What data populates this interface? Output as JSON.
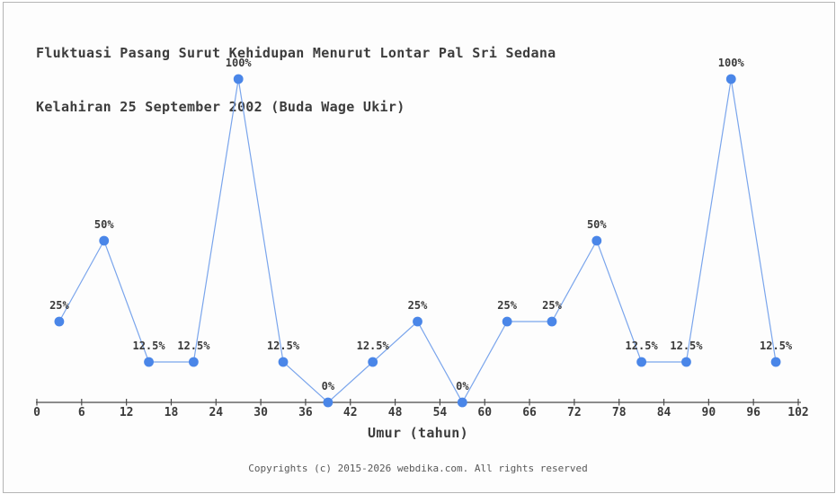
{
  "title": {
    "line1": "Fluktuasi Pasang Surut Kehidupan Menurut Lontar Pal Sri Sedana",
    "line2": "Kelahiran 25 September 2002 (Buda Wage Ukir)"
  },
  "chart_data": {
    "type": "line",
    "x": [
      3,
      9,
      15,
      21,
      27,
      33,
      39,
      45,
      51,
      57,
      63,
      69,
      75,
      81,
      87,
      93,
      99
    ],
    "values": [
      25,
      50,
      12.5,
      12.5,
      100,
      12.5,
      0,
      12.5,
      25,
      0,
      25,
      25,
      50,
      12.5,
      12.5,
      100,
      12.5
    ],
    "point_labels": [
      "25%",
      "50%",
      "12.5%",
      "12.5%",
      "100%",
      "12.5%",
      "0%",
      "12.5%",
      "25%",
      "0%",
      "25%",
      "25%",
      "50%",
      "12.5%",
      "12.5%",
      "100%",
      "12.5%"
    ],
    "x_ticks": [
      0,
      6,
      12,
      18,
      24,
      30,
      36,
      42,
      48,
      54,
      60,
      66,
      72,
      78,
      84,
      90,
      96,
      102
    ],
    "xlim": [
      0,
      102
    ],
    "ylim": [
      0,
      100
    ],
    "xlabel": "Umur (tahun)",
    "grid": false,
    "legend": false,
    "line_color": "#7aa5ec",
    "marker_color": "#4a86e8",
    "axis_color": "#4a4a4a",
    "label_color": "#3a3a3a"
  },
  "footer": {
    "copyright": "Copyrights (c) 2015-2026 webdika.com. All rights reserved"
  }
}
